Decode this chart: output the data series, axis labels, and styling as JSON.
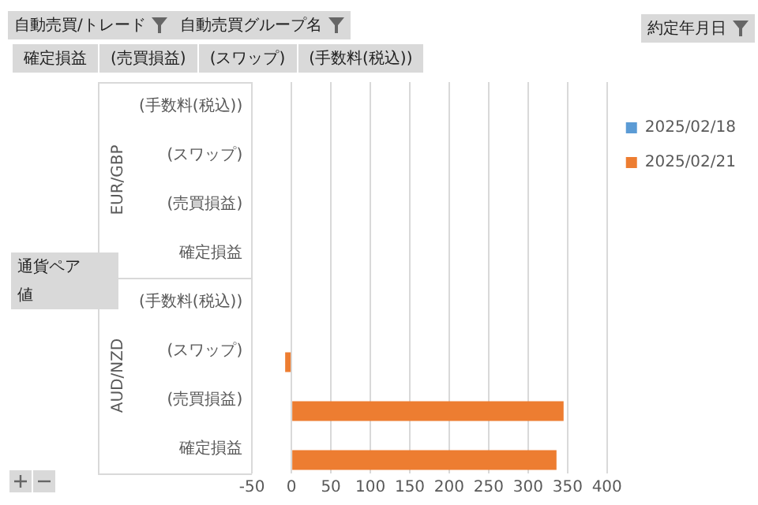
{
  "chart_data": {
    "type": "bar",
    "orientation": "horizontal",
    "legend_title": "約定年月日",
    "categories": [
      "(手数料(税込))",
      "(スワップ)",
      "(売買損益)",
      "確定損益",
      "(手数料(税込))",
      "(スワップ)",
      "(売買損益)",
      "確定損益"
    ],
    "series": [
      {
        "name": "2025/02/18",
        "color": "#5b9bd5",
        "values": [
          null,
          null,
          null,
          null,
          null,
          null,
          null,
          null
        ]
      },
      {
        "name": "2025/02/21",
        "color": "#ed7d31",
        "values": [
          null,
          null,
          null,
          null,
          null,
          -8,
          345,
          336
        ]
      }
    ],
    "xlim": [
      -50,
      400
    ],
    "xticks": [
      -50,
      0,
      50,
      100,
      150,
      200,
      250,
      300,
      350,
      400
    ],
    "grid": "x",
    "legend": "right",
    "annotations": [
      "自動売買/トレード",
      "自動売買グループ名",
      "確定損益",
      "(売買損益)",
      "(スワップ)",
      "(手数料(税込))",
      "通貨ペア",
      "値",
      "EUR/GBP",
      "AUD/NZD"
    ]
  }
}
